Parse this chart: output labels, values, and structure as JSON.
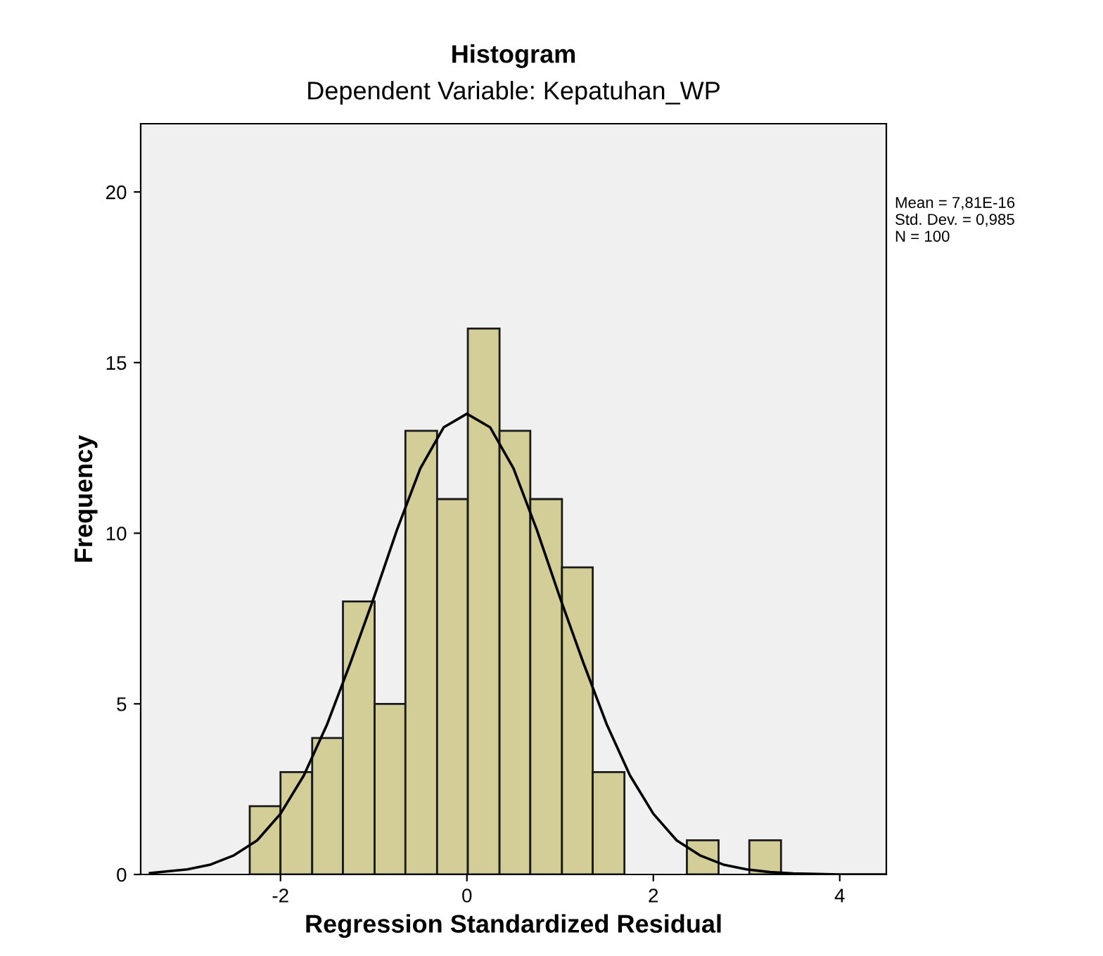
{
  "chart_data": {
    "type": "histogram",
    "title": "Histogram",
    "subtitle": "Dependent Variable: Kepatuhan_WP",
    "xlabel": "Regression Standardized Residual",
    "ylabel": "Frequency",
    "bins": [
      -2.33,
      -2.0,
      -1.66,
      -1.33,
      -0.99,
      -0.66,
      -0.32,
      0.01,
      0.35,
      0.68,
      1.02,
      1.35,
      1.69,
      2.36,
      2.7,
      3.03,
      3.37
    ],
    "values": [
      2,
      3,
      4,
      8,
      5,
      13,
      11,
      16,
      13,
      11,
      9,
      3,
      0,
      1,
      0,
      1
    ],
    "color": "#d3ce97",
    "series": [
      {
        "type": "line",
        "color": "#000000",
        "x": [
          -3.4,
          -3.0,
          -2.75,
          -2.5,
          -2.25,
          -2.0,
          -1.75,
          -1.5,
          -1.25,
          -1.0,
          -0.75,
          -0.5,
          -0.25,
          0.0,
          0.25,
          0.5,
          0.75,
          1.0,
          1.25,
          1.5,
          1.75,
          2.0,
          2.25,
          2.5,
          2.75,
          3.0,
          3.25,
          3.5,
          4.0,
          4.5
        ],
        "values": [
          0.04,
          0.15,
          0.29,
          0.56,
          1.0,
          1.78,
          2.9,
          4.4,
          6.2,
          8.1,
          10.1,
          11.9,
          13.1,
          13.5,
          13.1,
          11.9,
          10.1,
          8.1,
          6.2,
          4.4,
          2.9,
          1.78,
          1.0,
          0.56,
          0.29,
          0.15,
          0.07,
          0.03,
          0.0,
          0.0
        ]
      }
    ],
    "xlim": [
      -3.5,
      4.5
    ],
    "xticks": [
      {
        "value": -2,
        "label": "-2"
      },
      0,
      2,
      4
    ],
    "ylim": [
      0,
      22
    ],
    "yticks": [
      0,
      5,
      10,
      15,
      20
    ],
    "grid": false,
    "line_style": "solid",
    "annotations": [
      "Mean = 7,81E-16",
      "Std. Dev. = 0,985",
      "N = 100"
    ]
  }
}
